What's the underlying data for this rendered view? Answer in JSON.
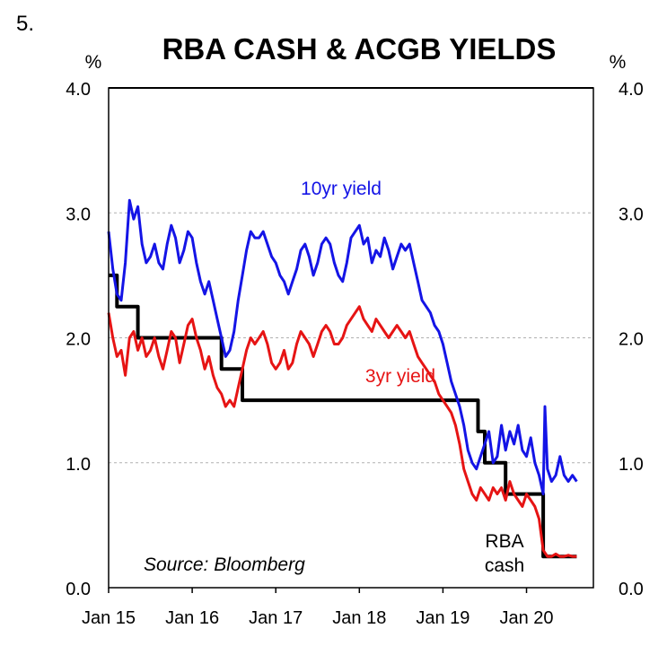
{
  "figure_number": "5.",
  "chart_data": {
    "type": "line",
    "title": "RBA CASH & ACGB YIELDS",
    "yunit_left": "%",
    "yunit_right": "%",
    "ylim": [
      0,
      4
    ],
    "yticks": [
      "0.0",
      "1.0",
      "2.0",
      "3.0",
      "4.0"
    ],
    "ytick_values": [
      0,
      1,
      2,
      3,
      4
    ],
    "xlim": [
      2015.0,
      2020.8
    ],
    "xticks": [
      "Jan 15",
      "Jan 16",
      "Jan 17",
      "Jan 18",
      "Jan 19",
      "Jan 20"
    ],
    "xtick_values": [
      2015,
      2016,
      2017,
      2018,
      2019,
      2020
    ],
    "grid": true,
    "source": "Source: Bloomberg",
    "series": [
      {
        "name": "10yr yield",
        "color": "#1414e6",
        "x": [
          2015.0,
          2015.05,
          2015.1,
          2015.15,
          2015.2,
          2015.25,
          2015.3,
          2015.35,
          2015.4,
          2015.45,
          2015.5,
          2015.55,
          2015.6,
          2015.65,
          2015.7,
          2015.75,
          2015.8,
          2015.85,
          2015.9,
          2015.95,
          2016.0,
          2016.05,
          2016.1,
          2016.15,
          2016.2,
          2016.25,
          2016.3,
          2016.35,
          2016.4,
          2016.45,
          2016.5,
          2016.55,
          2016.6,
          2016.65,
          2016.7,
          2016.75,
          2016.8,
          2016.85,
          2016.9,
          2016.95,
          2017.0,
          2017.05,
          2017.1,
          2017.15,
          2017.2,
          2017.25,
          2017.3,
          2017.35,
          2017.4,
          2017.45,
          2017.5,
          2017.55,
          2017.6,
          2017.65,
          2017.7,
          2017.75,
          2017.8,
          2017.85,
          2017.9,
          2017.95,
          2018.0,
          2018.05,
          2018.1,
          2018.15,
          2018.2,
          2018.25,
          2018.3,
          2018.35,
          2018.4,
          2018.45,
          2018.5,
          2018.55,
          2018.6,
          2018.65,
          2018.7,
          2018.75,
          2018.8,
          2018.85,
          2018.9,
          2018.95,
          2019.0,
          2019.05,
          2019.1,
          2019.15,
          2019.2,
          2019.25,
          2019.3,
          2019.35,
          2019.4,
          2019.45,
          2019.5,
          2019.55,
          2019.6,
          2019.65,
          2019.7,
          2019.75,
          2019.8,
          2019.85,
          2019.9,
          2019.95,
          2020.0,
          2020.05,
          2020.1,
          2020.15,
          2020.2,
          2020.22,
          2020.25,
          2020.3,
          2020.35,
          2020.4,
          2020.45,
          2020.5,
          2020.55,
          2020.6
        ],
        "values": [
          2.85,
          2.55,
          2.35,
          2.3,
          2.6,
          3.1,
          2.95,
          3.05,
          2.75,
          2.6,
          2.65,
          2.75,
          2.6,
          2.55,
          2.75,
          2.9,
          2.8,
          2.6,
          2.7,
          2.85,
          2.8,
          2.6,
          2.45,
          2.35,
          2.45,
          2.3,
          2.15,
          2.0,
          1.85,
          1.9,
          2.05,
          2.3,
          2.5,
          2.7,
          2.85,
          2.8,
          2.8,
          2.85,
          2.75,
          2.65,
          2.6,
          2.5,
          2.45,
          2.35,
          2.45,
          2.55,
          2.7,
          2.75,
          2.65,
          2.5,
          2.6,
          2.75,
          2.8,
          2.75,
          2.6,
          2.5,
          2.45,
          2.6,
          2.8,
          2.85,
          2.9,
          2.75,
          2.8,
          2.6,
          2.7,
          2.65,
          2.8,
          2.7,
          2.55,
          2.65,
          2.75,
          2.7,
          2.75,
          2.6,
          2.45,
          2.3,
          2.25,
          2.2,
          2.1,
          2.05,
          1.95,
          1.8,
          1.65,
          1.55,
          1.45,
          1.3,
          1.1,
          1.0,
          0.95,
          1.05,
          1.15,
          1.25,
          1.0,
          1.05,
          1.3,
          1.1,
          1.25,
          1.15,
          1.3,
          1.1,
          1.05,
          1.2,
          1.0,
          0.9,
          0.75,
          1.45,
          0.95,
          0.85,
          0.9,
          1.05,
          0.9,
          0.85,
          0.9,
          0.85
        ]
      },
      {
        "name": "3yr yield",
        "color": "#e61414",
        "x": [
          2015.0,
          2015.05,
          2015.1,
          2015.15,
          2015.2,
          2015.25,
          2015.3,
          2015.35,
          2015.4,
          2015.45,
          2015.5,
          2015.55,
          2015.6,
          2015.65,
          2015.7,
          2015.75,
          2015.8,
          2015.85,
          2015.9,
          2015.95,
          2016.0,
          2016.05,
          2016.1,
          2016.15,
          2016.2,
          2016.25,
          2016.3,
          2016.35,
          2016.4,
          2016.45,
          2016.5,
          2016.55,
          2016.6,
          2016.65,
          2016.7,
          2016.75,
          2016.8,
          2016.85,
          2016.9,
          2016.95,
          2017.0,
          2017.05,
          2017.1,
          2017.15,
          2017.2,
          2017.25,
          2017.3,
          2017.35,
          2017.4,
          2017.45,
          2017.5,
          2017.55,
          2017.6,
          2017.65,
          2017.7,
          2017.75,
          2017.8,
          2017.85,
          2017.9,
          2017.95,
          2018.0,
          2018.05,
          2018.1,
          2018.15,
          2018.2,
          2018.25,
          2018.3,
          2018.35,
          2018.4,
          2018.45,
          2018.5,
          2018.55,
          2018.6,
          2018.65,
          2018.7,
          2018.75,
          2018.8,
          2018.85,
          2018.9,
          2018.95,
          2019.0,
          2019.05,
          2019.1,
          2019.15,
          2019.2,
          2019.25,
          2019.3,
          2019.35,
          2019.4,
          2019.45,
          2019.5,
          2019.55,
          2019.6,
          2019.65,
          2019.7,
          2019.75,
          2019.8,
          2019.85,
          2019.9,
          2019.95,
          2020.0,
          2020.05,
          2020.1,
          2020.15,
          2020.2,
          2020.25,
          2020.3,
          2020.35,
          2020.4,
          2020.45,
          2020.5,
          2020.55,
          2020.6
        ],
        "values": [
          2.2,
          2.0,
          1.85,
          1.9,
          1.7,
          2.0,
          2.05,
          1.9,
          2.0,
          1.85,
          1.9,
          2.0,
          1.85,
          1.75,
          1.9,
          2.05,
          2.0,
          1.8,
          1.95,
          2.1,
          2.15,
          2.0,
          1.9,
          1.75,
          1.85,
          1.7,
          1.6,
          1.55,
          1.45,
          1.5,
          1.45,
          1.6,
          1.75,
          1.9,
          2.0,
          1.95,
          2.0,
          2.05,
          1.95,
          1.8,
          1.75,
          1.8,
          1.9,
          1.75,
          1.8,
          1.95,
          2.05,
          2.0,
          1.95,
          1.85,
          1.95,
          2.05,
          2.1,
          2.05,
          1.95,
          1.95,
          2.0,
          2.1,
          2.15,
          2.2,
          2.25,
          2.15,
          2.1,
          2.05,
          2.15,
          2.1,
          2.05,
          2.0,
          2.05,
          2.1,
          2.05,
          2.0,
          2.05,
          1.95,
          1.85,
          1.8,
          1.75,
          1.7,
          1.65,
          1.55,
          1.5,
          1.45,
          1.4,
          1.3,
          1.15,
          0.95,
          0.85,
          0.75,
          0.7,
          0.8,
          0.75,
          0.7,
          0.8,
          0.75,
          0.8,
          0.7,
          0.85,
          0.75,
          0.7,
          0.65,
          0.75,
          0.7,
          0.65,
          0.55,
          0.3,
          0.25,
          0.25,
          0.27,
          0.25,
          0.25,
          0.26,
          0.25,
          0.25
        ]
      },
      {
        "name": "RBA cash",
        "color": "#000000",
        "step": true,
        "x": [
          2015.0,
          2015.1,
          2015.1,
          2015.35,
          2015.35,
          2016.35,
          2016.35,
          2016.6,
          2016.6,
          2019.42,
          2019.42,
          2019.5,
          2019.5,
          2019.75,
          2019.75,
          2020.2,
          2020.2,
          2020.6
        ],
        "values": [
          2.5,
          2.5,
          2.25,
          2.25,
          2.0,
          2.0,
          1.75,
          1.75,
          1.5,
          1.5,
          1.25,
          1.25,
          1.0,
          1.0,
          0.75,
          0.75,
          0.25,
          0.25
        ]
      }
    ]
  }
}
